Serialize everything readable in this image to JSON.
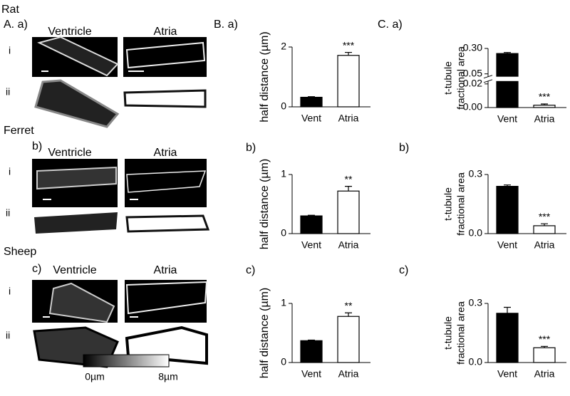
{
  "species": [
    "Rat",
    "Ferret",
    "Sheep"
  ],
  "panel_a_labels": [
    "A. a)",
    "b)",
    "c)"
  ],
  "image_titles": [
    "Ventricle",
    "Atria"
  ],
  "row_labels": [
    "i",
    "ii"
  ],
  "colorbar_labels": [
    "0µm",
    "8µm"
  ],
  "chart_data": [
    {
      "type": "bar",
      "panel_label": "B. a)",
      "y_label": "half distance (µm)",
      "categories": [
        "Vent",
        "Atria"
      ],
      "values": [
        0.32,
        1.72
      ],
      "errors": [
        0.02,
        0.1
      ],
      "colors": [
        "#000000",
        "#ffffff"
      ],
      "significance": [
        null,
        "***"
      ],
      "ylim": [
        0,
        2
      ],
      "yticks": [
        0,
        2
      ]
    },
    {
      "type": "bar",
      "panel_label": "b)",
      "y_label": "half distance (µm)",
      "categories": [
        "Vent",
        "Atria"
      ],
      "values": [
        0.3,
        0.72
      ],
      "errors": [
        0.01,
        0.08
      ],
      "colors": [
        "#000000",
        "#ffffff"
      ],
      "significance": [
        null,
        "**"
      ],
      "ylim": [
        0,
        1
      ],
      "yticks": [
        0,
        1
      ]
    },
    {
      "type": "bar",
      "panel_label": "c)",
      "y_label": "half distance (µm)",
      "categories": [
        "Vent",
        "Atria"
      ],
      "values": [
        0.37,
        0.78
      ],
      "errors": [
        0.01,
        0.06
      ],
      "colors": [
        "#000000",
        "#ffffff"
      ],
      "significance": [
        null,
        "**"
      ],
      "ylim": [
        0,
        1
      ],
      "yticks": [
        0,
        1
      ]
    },
    {
      "type": "bar",
      "panel_label": "C. a)",
      "y_label": [
        "t-tubule",
        "fractional area"
      ],
      "categories": [
        "Vent",
        "Atria"
      ],
      "values": [
        0.25,
        0.002
      ],
      "errors": [
        0.01,
        0.001
      ],
      "colors": [
        "#000000",
        "#ffffff"
      ],
      "significance": [
        null,
        "***"
      ],
      "ylim": [
        0,
        0.3
      ],
      "axis_break": true,
      "yticks": [
        {
          "value": 0,
          "label": "0.00"
        },
        {
          "value": 0.02,
          "label": "0.02"
        },
        {
          "value": 0.05,
          "label": "0.05"
        },
        {
          "value": 0.3,
          "label": "0.30"
        }
      ]
    },
    {
      "type": "bar",
      "panel_label": "b)",
      "y_label": [
        "t-tubule",
        "fractional area"
      ],
      "categories": [
        "Vent",
        "Atria"
      ],
      "values": [
        0.24,
        0.04
      ],
      "errors": [
        0.007,
        0.01
      ],
      "colors": [
        "#000000",
        "#ffffff"
      ],
      "significance": [
        null,
        "***"
      ],
      "ylim": [
        0,
        0.3
      ],
      "yticks": [
        {
          "value": 0,
          "label": "0.0"
        },
        {
          "value": 0.3,
          "label": "0.3"
        }
      ]
    },
    {
      "type": "bar",
      "panel_label": "c)",
      "y_label": [
        "t-tubule",
        "fractional area"
      ],
      "categories": [
        "Vent",
        "Atria"
      ],
      "values": [
        0.25,
        0.075
      ],
      "errors": [
        0.03,
        0.007
      ],
      "colors": [
        "#000000",
        "#ffffff"
      ],
      "significance": [
        null,
        "***"
      ],
      "ylim": [
        0,
        0.3
      ],
      "yticks": [
        {
          "value": 0,
          "label": "0.0"
        },
        {
          "value": 0.3,
          "label": "0.3"
        }
      ]
    }
  ]
}
